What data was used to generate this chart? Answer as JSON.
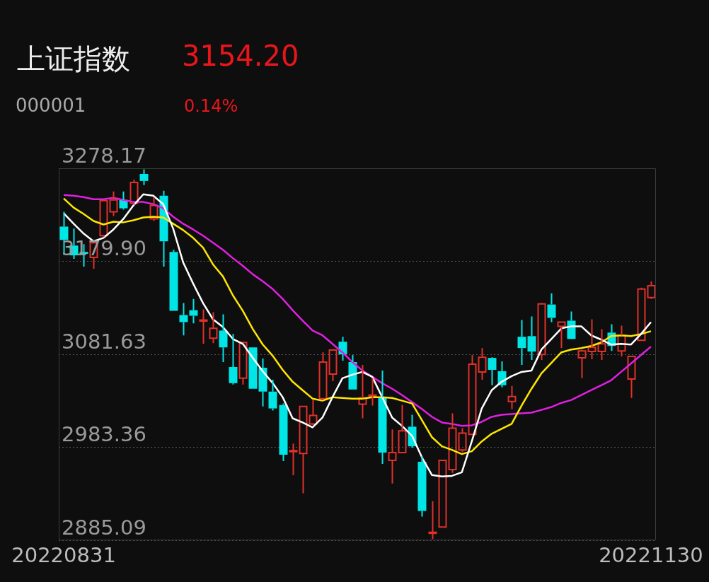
{
  "chart_data": {
    "type": "candlestick",
    "title": "上证指数",
    "subtitle": "000001",
    "annotations": [
      "3154.20",
      "0.14%"
    ],
    "categories": [
      "20220831",
      null,
      null,
      null,
      null,
      null,
      null,
      null,
      null,
      null,
      null,
      null,
      null,
      null,
      null,
      null,
      null,
      null,
      null,
      null,
      null,
      null,
      null,
      null,
      null,
      null,
      null,
      null,
      null,
      null,
      null,
      null,
      null,
      null,
      null,
      null,
      null,
      null,
      null,
      null,
      null,
      null,
      null,
      null,
      null,
      null,
      null,
      null,
      null,
      null,
      null,
      null,
      null,
      null,
      null,
      null,
      null,
      null,
      null,
      "20221130"
    ],
    "ohlc": [
      [
        3216.6,
        3232.2,
        3187.7,
        3202.5
      ],
      [
        3196.6,
        3214.4,
        3182.5,
        3186.2
      ],
      [
        3189.9,
        3198.1,
        3174.3,
        3187.7
      ],
      [
        3184.0,
        3199.6,
        3172.1,
        3199.6
      ],
      [
        3207.0,
        3244.7,
        3205.5,
        3244.0
      ],
      [
        3232.2,
        3253.7,
        3227.7,
        3244.8
      ],
      [
        3244.8,
        3253.7,
        3234.4,
        3235.9
      ],
      [
        3241.1,
        3266.3,
        3239.6,
        3263.3
      ],
      [
        3272.2,
        3277.0,
        3260.4,
        3264.8
      ],
      [
        3224.8,
        3247.8,
        3222.5,
        3238.9
      ],
      [
        3249.3,
        3254.4,
        3174.3,
        3201.0
      ],
      [
        3189.9,
        3192.1,
        3127.6,
        3127.6
      ],
      [
        3123.2,
        3135.8,
        3101.6,
        3115.7
      ],
      [
        3128.3,
        3140.2,
        3114.3,
        3122.4
      ],
      [
        3117.2,
        3129.1,
        3092.7,
        3117.9
      ],
      [
        3098.7,
        3126.1,
        3093.5,
        3109.1
      ],
      [
        3106.8,
        3123.9,
        3073.5,
        3089.0
      ],
      [
        3068.3,
        3103.1,
        3049.7,
        3051.2
      ],
      [
        3056.4,
        3094.2,
        3049.7,
        3094.2
      ],
      [
        3089.0,
        3089.0,
        3045.3,
        3045.3
      ],
      [
        3067.5,
        3077.2,
        3026.7,
        3042.3
      ],
      [
        3042.3,
        3054.9,
        3022.3,
        3024.5
      ],
      [
        3028.2,
        3029.7,
        2968.9,
        2975.6
      ],
      [
        2979.3,
        2987.4,
        2954.0,
        2980.0
      ],
      [
        2977.0,
        3026.7,
        2934.8,
        3026.7
      ],
      [
        3008.2,
        3033.4,
        3006.7,
        3017.1
      ],
      [
        3034.9,
        3083.8,
        3034.9,
        3073.5
      ],
      [
        3060.8,
        3086.8,
        3053.4,
        3086.1
      ],
      [
        3095.0,
        3100.2,
        3075.0,
        3081.6
      ],
      [
        3073.5,
        3080.9,
        3044.5,
        3044.5
      ],
      [
        3029.0,
        3070.5,
        3014.1,
        3035.6
      ],
      [
        3038.0,
        3056.4,
        3027.5,
        3038.6
      ],
      [
        3036.4,
        3064.6,
        2966.0,
        2977.8
      ],
      [
        2969.6,
        3002.3,
        2945.1,
        2977.8
      ],
      [
        2977.8,
        3028.2,
        2977.8,
        3000.8
      ],
      [
        3005.2,
        3017.8,
        2983.0,
        2984.5
      ],
      [
        2968.1,
        2974.1,
        2910.3,
        2916.2
      ],
      [
        2893.0,
        2926.6,
        2886.5,
        2893.7
      ],
      [
        2899.2,
        2969.6,
        2899.2,
        2969.6
      ],
      [
        2960.0,
        3019.3,
        2956.3,
        3003.7
      ],
      [
        2980.7,
        3003.7,
        2978.5,
        2998.5
      ],
      [
        2997.1,
        3080.9,
        2997.1,
        3071.2
      ],
      [
        3063.1,
        3088.3,
        3054.9,
        3078.6
      ],
      [
        3077.9,
        3078.6,
        3049.0,
        3065.3
      ],
      [
        3063.8,
        3074.2,
        3046.8,
        3049.0
      ],
      [
        3031.9,
        3048.2,
        3023.8,
        3037.1
      ],
      [
        3100.2,
        3118.0,
        3070.5,
        3088.3
      ],
      [
        3100.9,
        3121.7,
        3075.7,
        3084.6
      ],
      [
        3081.6,
        3135.8,
        3075.7,
        3135.0
      ],
      [
        3134.3,
        3146.1,
        3115.7,
        3120.2
      ],
      [
        3111.3,
        3115.7,
        3088.3,
        3115.7
      ],
      [
        3117.2,
        3126.9,
        3097.9,
        3097.9
      ],
      [
        3077.9,
        3086.1,
        3056.4,
        3085.3
      ],
      [
        3084.6,
        3118.7,
        3076.4,
        3089.0
      ],
      [
        3084.6,
        3108.3,
        3075.7,
        3092.7
      ],
      [
        3104.6,
        3113.5,
        3085.3,
        3090.5
      ],
      [
        3085.3,
        3112.0,
        3079.4,
        3101.6
      ],
      [
        3055.6,
        3079.4,
        3035.6,
        3079.4
      ],
      [
        3096.4,
        3152.1,
        3096.4,
        3150.6
      ],
      [
        3141.7,
        3158.7,
        3140.2,
        3154.2
      ]
    ],
    "colors": [
      "#00e5e5",
      "#00e5e5",
      "#00e5e5",
      "#e0302a",
      "#e0302a",
      "#e0302a",
      "#00e5e5",
      "#e0302a",
      "#00e5e5",
      "#e0302a",
      "#00e5e5",
      "#00e5e5",
      "#00e5e5",
      "#00e5e5",
      "#e0302a",
      "#e0302a",
      "#00e5e5",
      "#00e5e5",
      "#e0302a",
      "#00e5e5",
      "#00e5e5",
      "#00e5e5",
      "#00e5e5",
      "#e0302a",
      "#e0302a",
      "#e0302a",
      "#e0302a",
      "#e0302a",
      "#00e5e5",
      "#00e5e5",
      "#e0302a",
      "#e0302a",
      "#00e5e5",
      "#e0302a",
      "#e0302a",
      "#00e5e5",
      "#00e5e5",
      "#e0302a",
      "#e0302a",
      "#e0302a",
      "#e0302a",
      "#e0302a",
      "#e0302a",
      "#00e5e5",
      "#00e5e5",
      "#e0302a",
      "#00e5e5",
      "#00e5e5",
      "#e0302a",
      "#00e5e5",
      "#e0302a",
      "#00e5e5",
      "#e0302a",
      "#e0302a",
      "#e0302a",
      "#00e5e5",
      "#e0302a",
      "#e0302a",
      "#e0302a",
      "#e0302a"
    ],
    "series": [
      {
        "type": "line",
        "color": "#ffffff",
        "values": [
          3230.7,
          3219.6,
          3209.2,
          3201.0,
          3204.7,
          3213.6,
          3224.8,
          3238.9,
          3250.7,
          3249.2,
          3240.3,
          3214.4,
          3178.8,
          3156.5,
          3135.8,
          3118.7,
          3110.5,
          3097.9,
          3092.7,
          3077.9,
          3063.8,
          3051.2,
          3036.4,
          3014.1,
          3009.7,
          3004.5,
          3014.9,
          3036.4,
          3056.4,
          3060.1,
          3063.1,
          3057.9,
          3036.4,
          3014.9,
          3006.0,
          2995.6,
          2972.6,
          2954.1,
          2952.6,
          2953.3,
          2957.0,
          2989.7,
          3024.5,
          3043.8,
          3052.7,
          3058.6,
          3063.1,
          3064.6,
          3086.8,
          3097.9,
          3109.1,
          3111.3,
          3111.3,
          3101.7,
          3097.2,
          3092.0,
          3092.7,
          3092.0,
          3103.1,
          3115.7
        ]
      },
      {
        "type": "line",
        "color": "#ffe600",
        "values": [
          3246.3,
          3236.6,
          3230.0,
          3222.5,
          3218.8,
          3221.8,
          3221.1,
          3223.3,
          3226.3,
          3227.0,
          3226.3,
          3219.6,
          3212.9,
          3204.7,
          3194.4,
          3176.6,
          3164.0,
          3143.9,
          3127.6,
          3108.3,
          3092.0,
          3080.1,
          3065.3,
          3052.7,
          3043.8,
          3034.9,
          3032.7,
          3036.4,
          3035.6,
          3034.9,
          3034.9,
          3036.4,
          3036.4,
          3035.6,
          3032.7,
          3029.7,
          3011.9,
          2994.1,
          2984.5,
          2980.8,
          2976.3,
          2979.3,
          2989.7,
          2997.8,
          3003.0,
          3008.2,
          3027.5,
          3045.3,
          3061.6,
          3072.7,
          3083.8,
          3086.8,
          3088.3,
          3090.5,
          3094.2,
          3100.9,
          3101.7,
          3100.9,
          3103.1,
          3106.1
        ]
      },
      {
        "type": "line",
        "color": "#e020e0",
        "values": [
          3250.0,
          3249.2,
          3247.8,
          3245.5,
          3245.5,
          3247.0,
          3244.8,
          3242.6,
          3242.6,
          3240.3,
          3235.9,
          3227.0,
          3219.6,
          3213.6,
          3207.0,
          3199.6,
          3192.1,
          3183.2,
          3175.1,
          3166.2,
          3158.8,
          3150.6,
          3140.2,
          3128.3,
          3117.2,
          3106.8,
          3101.7,
          3092.7,
          3083.8,
          3073.5,
          3064.6,
          3057.9,
          3051.2,
          3045.3,
          3038.6,
          3031.2,
          3023.8,
          3015.6,
          3009.7,
          3008.2,
          3006.0,
          3006.7,
          3010.4,
          3015.6,
          3017.8,
          3018.6,
          3019.3,
          3020.1,
          3023.0,
          3026.0,
          3030.4,
          3033.4,
          3038.6,
          3043.8,
          3049.0,
          3054.2,
          3063.1,
          3072.0,
          3080.9,
          3089.8
        ]
      }
    ],
    "marker": "none",
    "ylim": [
      2885.09,
      3278.17
    ],
    "yticks": [
      2885.09,
      2983.36,
      3081.63,
      {
        "value": 3179.9,
        "label": "3179.90"
      },
      3278.17
    ],
    "grid": "y"
  }
}
